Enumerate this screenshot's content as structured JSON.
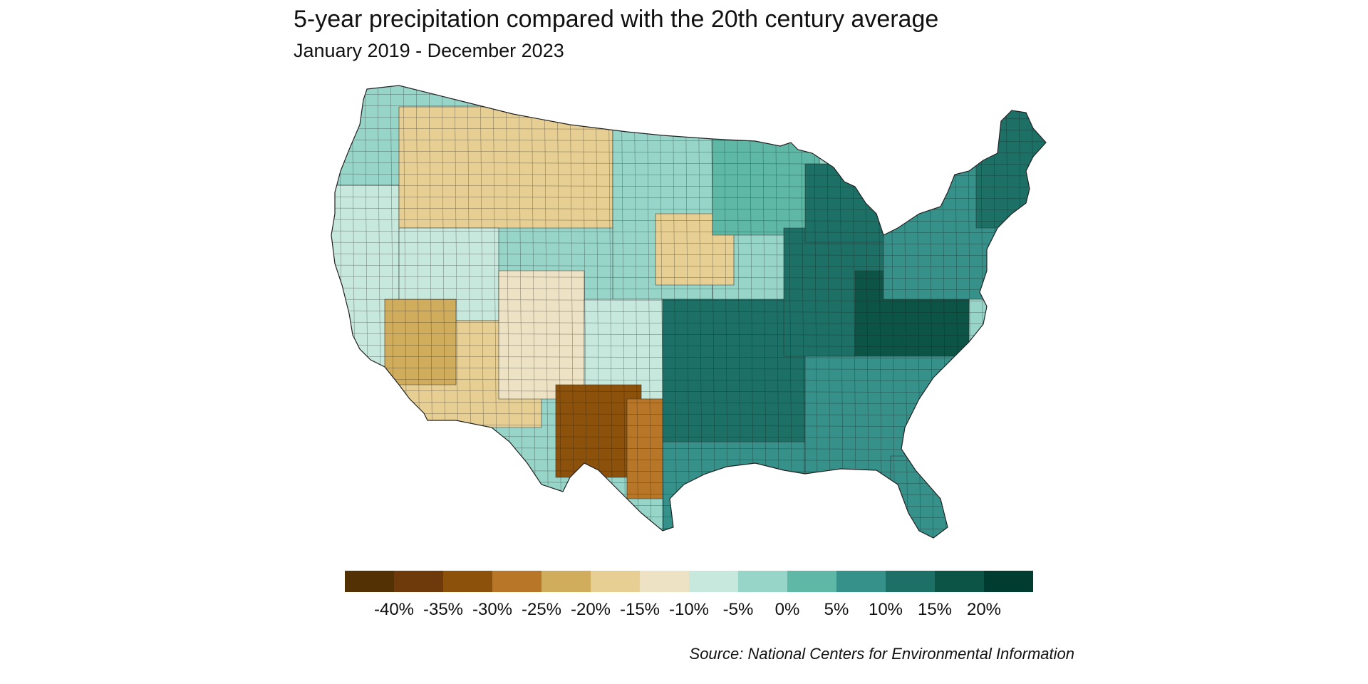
{
  "header": {
    "title": "5-year precipitation compared with the 20th century average",
    "subtitle": "January 2019 - December 2023"
  },
  "legend": {
    "colors": [
      "#543005",
      "#6e3a0b",
      "#8c510a",
      "#b77628",
      "#d0ac5d",
      "#e7cf93",
      "#ede2c3",
      "#c7e8dd",
      "#97d5c9",
      "#5fb7a6",
      "#35918a",
      "#1c7066",
      "#0b5446",
      "#003c30"
    ],
    "labels": [
      "-40%",
      "-35%",
      "-30%",
      "-25%",
      "-20%",
      "-15%",
      "-10%",
      "-5%",
      "0%",
      "5%",
      "10%",
      "15%",
      "20%"
    ]
  },
  "footer": {
    "source": "Source: National Centers for Environmental Information"
  },
  "map": {
    "region": "Contiguous United States",
    "unit": "county",
    "regions": [
      {
        "name": "northwest",
        "color": "#97d5c9"
      },
      {
        "name": "west-coast",
        "color": "#c7e8dd"
      },
      {
        "name": "northern-rockies",
        "color": "#e7cf93"
      },
      {
        "name": "great-basin",
        "color": "#c7e8dd"
      },
      {
        "name": "southwest",
        "color": "#e7cf93"
      },
      {
        "name": "arizona-dry",
        "color": "#d0ac5d"
      },
      {
        "name": "new-mexico",
        "color": "#ede2c3"
      },
      {
        "name": "great-plains",
        "color": "#97d5c9"
      },
      {
        "name": "kansas-dry",
        "color": "#e7cf93"
      },
      {
        "name": "upper-midwest",
        "color": "#5fb7a6"
      },
      {
        "name": "texas-panhandle",
        "color": "#c7e8dd"
      },
      {
        "name": "west-texas-drought",
        "color": "#8c510a"
      },
      {
        "name": "south-texas",
        "color": "#b77628"
      },
      {
        "name": "gulf-coast",
        "color": "#35918a"
      },
      {
        "name": "lower-mississippi",
        "color": "#1c7066"
      },
      {
        "name": "ohio-valley",
        "color": "#1c7066"
      },
      {
        "name": "appalachians",
        "color": "#0b5446"
      },
      {
        "name": "southeast",
        "color": "#35918a"
      },
      {
        "name": "florida",
        "color": "#35918a"
      },
      {
        "name": "michigan",
        "color": "#1c7066"
      },
      {
        "name": "northeast",
        "color": "#35918a"
      },
      {
        "name": "new-england",
        "color": "#1c7066"
      }
    ]
  }
}
